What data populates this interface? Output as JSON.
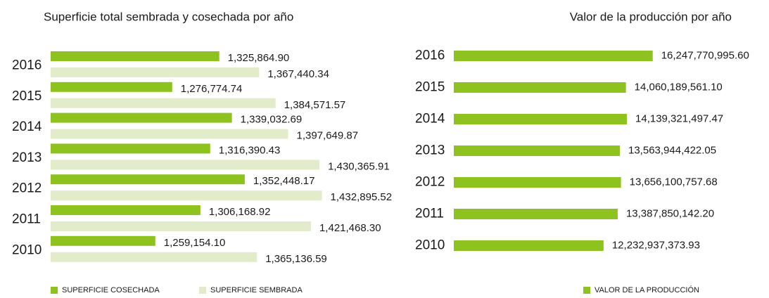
{
  "chart_data": [
    {
      "type": "hbar",
      "title": "Superficie total sembrada y cosechada por año",
      "categories": [
        "2016",
        "2015",
        "2014",
        "2013",
        "2012",
        "2011",
        "2010"
      ],
      "series": [
        {
          "name": "SUPERFICIE COSECHADA",
          "color": "#8dc21f",
          "values": [
            1325864.9,
            1276774.74,
            1339032.69,
            1316390.43,
            1352448.17,
            1306168.92,
            1259154.1
          ],
          "value_labels": [
            "1,325,864.90",
            "1,276,774.74",
            "1,339,032.69",
            "1,316,390.43",
            "1,352,448.17",
            "1,306,168.92",
            "1,259,154.10"
          ]
        },
        {
          "name": "SUPERFICIE SEMBRADA",
          "color": "#e3ecca",
          "values": [
            1367440.34,
            1384571.57,
            1397649.87,
            1430365.91,
            1432895.52,
            1421468.3,
            1365136.59
          ],
          "value_labels": [
            "1,367,440.34",
            "1,384,571.57",
            "1,397,649.87",
            "1,430,365.91",
            "1,432,895.52",
            "1,421,468.30",
            "1,365,136.59"
          ]
        }
      ],
      "xlim": [
        1150000,
        1500000
      ]
    },
    {
      "type": "hbar",
      "title": "Valor de la producción por año",
      "categories": [
        "2016",
        "2015",
        "2014",
        "2013",
        "2012",
        "2011",
        "2010"
      ],
      "series": [
        {
          "name": "VALOR DE LA PRODUCCIÓN",
          "color": "#8dc21f",
          "values": [
            16247770995.6,
            14060189561.1,
            14139321497.47,
            13563944422.05,
            13656100757.68,
            13387850142.2,
            12232937373.93
          ],
          "value_labels": [
            "16,247,770,995.60",
            "14,060,189,561.10",
            "14,139,321,497.47",
            "13,563,944,422.05",
            "13,656,100,757.68",
            "13,387,850,142.20",
            "12,232,937,373.93"
          ]
        }
      ],
      "xlim": [
        0,
        20000000000
      ]
    }
  ]
}
